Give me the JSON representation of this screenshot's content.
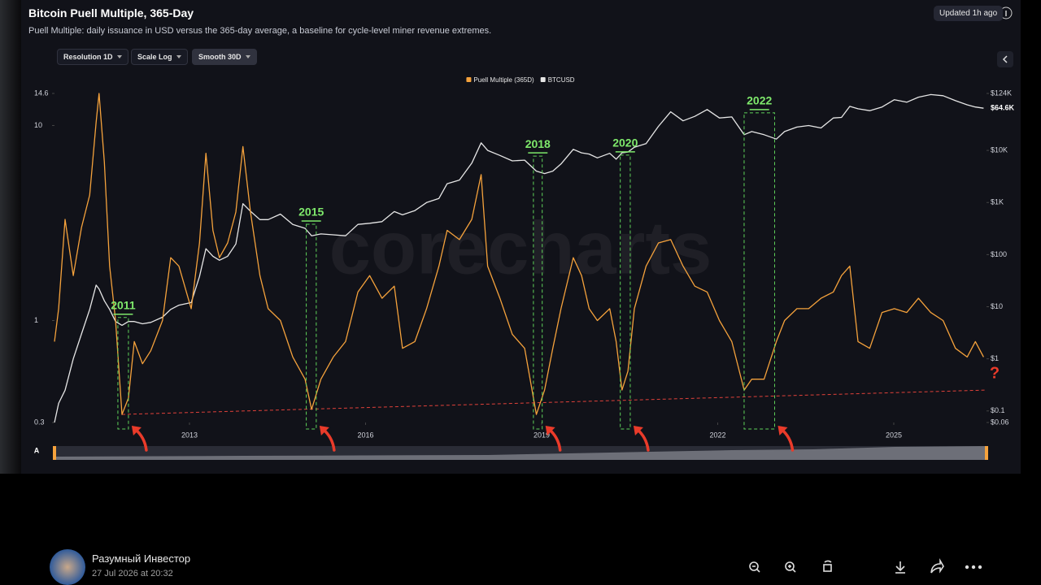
{
  "header": {
    "updated": "Updated 1h ago",
    "controls": [
      "Resolution 1D",
      "Scale Log",
      "Smooth 30D"
    ]
  },
  "chart_data": {
    "type": "line",
    "title": "Bitcoin Puell Multiple, 365-Day",
    "subtitle": "Puell Multiple: daily issuance in USD versus the 365-day average, a baseline for cycle-level miner revenue extremes.",
    "watermark": "corecharts",
    "legend": "top",
    "x": [
      2010.7,
      2010.77,
      2010.88,
      2011.02,
      2011.16,
      2011.3,
      2011.41,
      2011.46,
      2011.55,
      2011.64,
      2011.74,
      2011.85,
      2011.96,
      2012.06,
      2012.2,
      2012.34,
      2012.54,
      2012.68,
      2012.82,
      2013.03,
      2013.17,
      2013.28,
      2013.4,
      2013.51,
      2013.65,
      2013.79,
      2013.91,
      2014.04,
      2014.2,
      2014.34,
      2014.55,
      2014.76,
      2014.97,
      2015.08,
      2015.24,
      2015.45,
      2015.66,
      2015.87,
      2016.07,
      2016.28,
      2016.49,
      2016.63,
      2016.84,
      2017.04,
      2017.25,
      2017.39,
      2017.6,
      2017.81,
      2017.97,
      2018.08,
      2018.29,
      2018.5,
      2018.71,
      2018.91,
      2019.05,
      2019.19,
      2019.33,
      2019.54,
      2019.68,
      2019.81,
      2019.95,
      2020.16,
      2020.27,
      2020.37,
      2020.47,
      2020.58,
      2020.78,
      2020.99,
      2021.2,
      2021.41,
      2021.61,
      2021.82,
      2022.03,
      2022.24,
      2022.45,
      2022.58,
      2022.79,
      2023.0,
      2023.14,
      2023.35,
      2023.55,
      2023.76,
      2023.97,
      2024.11,
      2024.25,
      2024.39,
      2024.59,
      2024.8,
      2025.01,
      2025.22,
      2025.42,
      2025.63,
      2025.84,
      2026.05,
      2026.25,
      2026.39,
      2026.53
    ],
    "series": [
      {
        "name": "Puell Multiple (365D)",
        "color": "#f5a23c",
        "values": [
          0.78,
          1.15,
          3.3,
          1.7,
          3.0,
          4.4,
          10.4,
          14.6,
          6.5,
          1.9,
          1.0,
          0.33,
          0.4,
          0.78,
          0.6,
          0.7,
          1.0,
          2.1,
          1.9,
          1.15,
          2.5,
          7.2,
          2.9,
          2.1,
          2.5,
          3.6,
          7.8,
          3.6,
          1.7,
          1.15,
          1.0,
          0.65,
          0.5,
          0.35,
          0.5,
          0.65,
          0.78,
          1.4,
          1.7,
          1.3,
          1.5,
          0.72,
          0.78,
          1.15,
          1.9,
          2.9,
          2.6,
          3.3,
          5.6,
          1.9,
          1.3,
          0.85,
          0.72,
          0.33,
          0.44,
          0.72,
          1.15,
          2.1,
          1.7,
          1.15,
          1.0,
          1.15,
          0.78,
          0.44,
          0.55,
          1.15,
          1.9,
          2.5,
          2.6,
          1.9,
          1.5,
          1.4,
          1.0,
          0.78,
          0.44,
          0.5,
          0.5,
          0.78,
          1.0,
          1.15,
          1.15,
          1.3,
          1.4,
          1.7,
          1.9,
          0.78,
          0.72,
          1.1,
          1.15,
          1.1,
          1.3,
          1.1,
          1.0,
          0.72,
          0.65,
          0.78,
          0.65
        ]
      },
      {
        "name": "BTCUSD",
        "color": "#e6e6e6",
        "axis": "y2",
        "values": [
          0.06,
          0.14,
          0.25,
          1,
          3,
          8.9,
          26,
          22,
          13,
          8.9,
          5.2,
          4.4,
          5.2,
          5.2,
          4.7,
          5,
          6.3,
          8.9,
          10.7,
          12,
          38,
          130,
          93,
          78,
          93,
          160,
          950,
          680,
          470,
          470,
          600,
          380,
          320,
          230,
          250,
          240,
          230,
          380,
          400,
          430,
          670,
          580,
          700,
          1000,
          1200,
          2300,
          2700,
          5700,
          14000,
          10000,
          8000,
          6300,
          6500,
          4000,
          3600,
          4000,
          5500,
          10500,
          9000,
          8500,
          7200,
          8800,
          6800,
          9000,
          9300,
          11500,
          13500,
          29000,
          55000,
          37000,
          45000,
          61000,
          42000,
          44000,
          20000,
          23000,
          20000,
          16500,
          23000,
          28000,
          30000,
          27000,
          42000,
          43000,
          70000,
          63000,
          58000,
          68000,
          94000,
          84000,
          105000,
          118000,
          112000,
          90000,
          75000,
          68000,
          64600
        ]
      }
    ],
    "xlim": [
      2010.7,
      2026.58
    ],
    "xticks": [
      2013,
      2016,
      2019,
      2022,
      2025
    ],
    "ylim": [
      0.3,
      14.6
    ],
    "yticks": [
      0.3,
      1,
      10,
      14.6
    ],
    "log_scale": true,
    "y2lim": [
      0.06,
      124000
    ],
    "y2ticks": [
      {
        "value": 0.06,
        "label": "$0.06"
      },
      {
        "value": 0.1,
        "label": "$0.1"
      },
      {
        "value": 1,
        "label": "$1"
      },
      {
        "value": 10,
        "label": "$10"
      },
      {
        "value": 100,
        "label": "$100"
      },
      {
        "value": 1000,
        "label": "$1K"
      },
      {
        "value": 10000,
        "label": "$10K"
      },
      {
        "value": 124000,
        "label": "$124K"
      }
    ],
    "y2_log_scale": true,
    "y2_last_value": {
      "value": 64600,
      "label": "$64.6K"
    },
    "grid": false,
    "annotations": [
      {
        "label": "2011",
        "x0": 2011.78,
        "x1": 2011.96
      },
      {
        "label": "2015",
        "x0": 2014.99,
        "x1": 2015.16
      },
      {
        "label": "2018",
        "x0": 2018.86,
        "x1": 2019.01
      },
      {
        "label": "2020",
        "x0": 2020.34,
        "x1": 2020.51
      },
      {
        "label": "2022",
        "x0": 2022.45,
        "x1": 2022.97
      }
    ],
    "trendline": {
      "x": [
        2011.85,
        2026.58
      ],
      "values": [
        0.33,
        0.44
      ],
      "color": "#e0413a"
    },
    "end_note": "?",
    "navigator_label": "A"
  },
  "footer": {
    "author": "Разумный Инвестор",
    "date": "27 Jul 2026 at 20:32"
  }
}
